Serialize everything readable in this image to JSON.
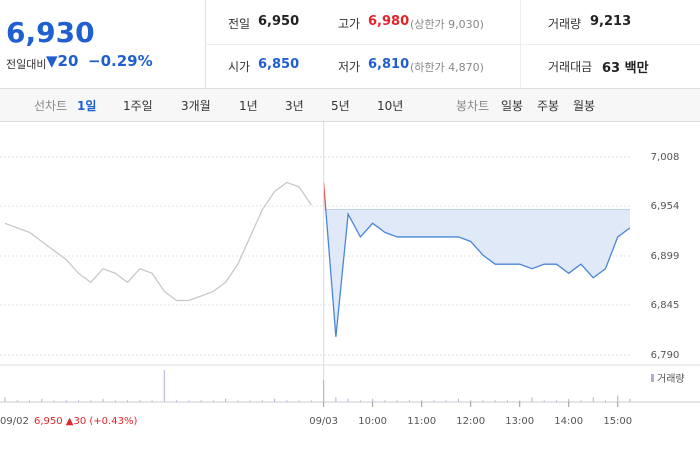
{
  "header": {
    "price": "6,930",
    "change_label": "전일대비",
    "change": "▼20",
    "change_pct": "−0.29%",
    "stats": [
      {
        "label": "전일",
        "value": "6,950",
        "color": "#222222"
      },
      {
        "label": "고가",
        "value": "6,980",
        "note": "(상한가 9,030)",
        "color": "#e0262b"
      },
      {
        "label": "거래량",
        "value": "9,213",
        "color": "#222222"
      },
      {
        "label": "시가",
        "value": "6,850",
        "color": "#1f5fd0"
      },
      {
        "label": "저가",
        "value": "6,810",
        "note": "(하한가 4,870)",
        "color": "#1f5fd0"
      },
      {
        "label": "거래대금",
        "value": "63 백만",
        "color": "#222222"
      }
    ]
  },
  "tabs": {
    "line_label": "선차트",
    "line_periods": [
      "1일",
      "1주일",
      "3개월",
      "1년",
      "3년",
      "5년",
      "10년"
    ],
    "candle_label": "봉차트",
    "candle_periods": [
      "일봉",
      "주봉",
      "월봉"
    ]
  },
  "chart_data": {
    "type": "line",
    "categories": [
      "09/02",
      null,
      null,
      null,
      null,
      null,
      null,
      null,
      null,
      null,
      null,
      null,
      null,
      null,
      null,
      null,
      null,
      null,
      null,
      null,
      null,
      null,
      null,
      null,
      null,
      null,
      "09/03",
      null,
      null,
      null,
      "10:00",
      null,
      null,
      null,
      "11:00",
      null,
      null,
      null,
      "12:00",
      null,
      null,
      null,
      "13:00",
      null,
      null,
      null,
      "14:00",
      null,
      null,
      null,
      "15:00",
      null
    ],
    "series": [
      {
        "color": "#c8c8c8",
        "values": [
          6935,
          6930,
          6925,
          6915,
          6905,
          6895,
          6880,
          6870,
          6885,
          6880,
          6870,
          6885,
          6880,
          6860,
          6850,
          6850,
          6855,
          6860,
          6870,
          6890,
          6920,
          6950,
          6970,
          6980,
          6975,
          6955,
          null,
          null,
          null,
          null,
          null,
          null,
          null,
          null,
          null,
          null,
          null,
          null,
          null,
          null,
          null,
          null,
          null,
          null,
          null,
          null,
          null,
          null,
          null,
          null,
          null,
          null
        ]
      },
      {
        "color": "#4a86d8",
        "values": [
          null,
          null,
          null,
          null,
          null,
          null,
          null,
          null,
          null,
          null,
          null,
          null,
          null,
          null,
          null,
          null,
          null,
          null,
          null,
          null,
          null,
          null,
          null,
          null,
          null,
          null,
          6980,
          6810,
          6945,
          6920,
          6935,
          6925,
          6920,
          6920,
          6920,
          6920,
          6920,
          6920,
          6915,
          6900,
          6890,
          6890,
          6890,
          6885,
          6890,
          6890,
          6880,
          6890,
          6875,
          6885,
          6920,
          6930
        ]
      }
    ],
    "baseline": 6950,
    "volume": {
      "name": "거래량",
      "color": "#b9a9d6",
      "values": [
        3,
        1,
        1,
        2,
        1,
        1,
        1,
        1,
        2,
        1,
        1,
        1,
        1,
        20,
        1,
        1,
        1,
        1,
        2,
        1,
        1,
        1,
        2,
        1,
        1,
        1,
        14,
        3,
        2,
        1,
        2,
        1,
        1,
        1,
        1,
        1,
        1,
        2,
        1,
        1,
        1,
        1,
        1,
        3,
        1,
        1,
        2,
        1,
        3,
        1,
        4,
        2
      ]
    },
    "annotation": "6,950 ▲30 (+0.43%)",
    "ylim": [
      6790,
      7008
    ],
    "yticks": [
      {
        "value": 6790,
        "label": "6,790"
      },
      {
        "value": 6845,
        "label": "6,845"
      },
      {
        "value": 6899,
        "label": "6,899"
      },
      {
        "value": 6954,
        "label": "6,954"
      },
      {
        "value": 7008,
        "label": "7,008"
      }
    ],
    "grid": true
  }
}
